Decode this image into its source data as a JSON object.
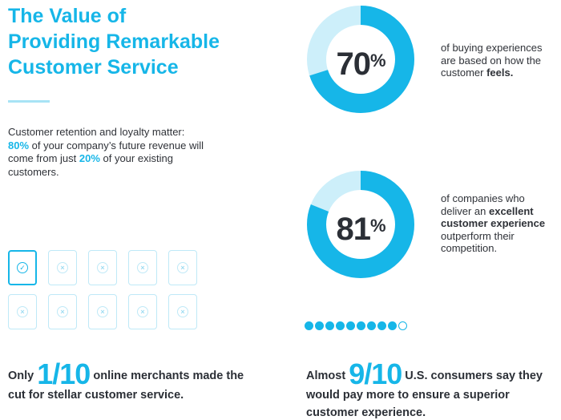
{
  "title": {
    "line1": "The Value of",
    "line2": "Providing Remarkable",
    "line3": "Customer Service"
  },
  "retention": {
    "part1": "Customer retention and loyalty matter:",
    "pct_revenue": "80%",
    "part2": " of your company’s future revenue will come from just ",
    "pct_customers": "20%",
    "part3": " of your existing customers."
  },
  "merchants": {
    "prefix": "Only",
    "stat": "1/10",
    "suffix": "online merchants made the cut for stellar customer service."
  },
  "stat_experiences": {
    "value": 70,
    "number": "70",
    "percent_sign": "%",
    "text1": "of buying experiences are based on how the customer ",
    "text_bold": "feels."
  },
  "stat_companies": {
    "value": 81,
    "number": "81",
    "percent_sign": "%",
    "text1": "of companies who deliver an ",
    "text_bold": "excellent customer experience",
    "text2": " outperform their competition."
  },
  "consumers": {
    "prefix": "Almost",
    "stat": "9/10",
    "suffix": "U.S. consumers say they would pay more to ensure a superior customer experience."
  },
  "grid": {
    "total": 10,
    "checked": 1
  },
  "dots": {
    "total": 10,
    "filled": 9
  },
  "colors": {
    "accent": "#16b6e8",
    "accent_light": "#cdeffa",
    "text": "#2b2f36"
  }
}
